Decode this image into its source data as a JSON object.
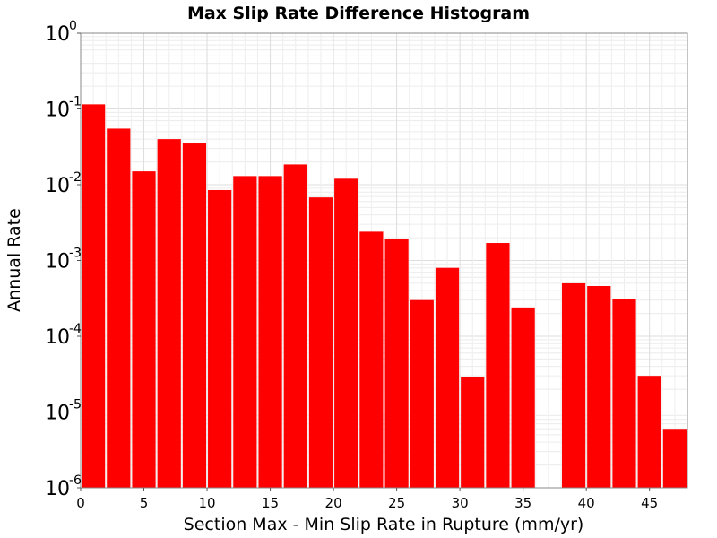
{
  "chart_data": {
    "type": "bar",
    "title": "Max Slip Rate Difference Histogram",
    "xlabel": "Section Max - Min Slip Rate in Rupture (mm/yr)",
    "ylabel": "Annual Rate",
    "xlim": [
      0,
      48
    ],
    "ylim": [
      1e-06,
      1
    ],
    "yscale": "log",
    "bin_width": 2,
    "x_ticks": [
      0,
      5,
      10,
      15,
      20,
      25,
      30,
      35,
      40,
      45
    ],
    "y_ticks": [
      {
        "value": 1,
        "base": "10",
        "exp": "0"
      },
      {
        "value": 0.1,
        "base": "10",
        "exp": "-1"
      },
      {
        "value": 0.01,
        "base": "10",
        "exp": "-2"
      },
      {
        "value": 0.001,
        "base": "10",
        "exp": "-3"
      },
      {
        "value": 0.0001,
        "base": "10",
        "exp": "-4"
      },
      {
        "value": 1e-05,
        "base": "10",
        "exp": "-5"
      },
      {
        "value": 1e-06,
        "base": "10",
        "exp": "-6"
      }
    ],
    "bar_color": "#ff0000",
    "grid": true,
    "bars": [
      {
        "x_start": 0,
        "value": 0.115
      },
      {
        "x_start": 2,
        "value": 0.055
      },
      {
        "x_start": 4,
        "value": 0.015
      },
      {
        "x_start": 6,
        "value": 0.04
      },
      {
        "x_start": 8,
        "value": 0.035
      },
      {
        "x_start": 10,
        "value": 0.0085
      },
      {
        "x_start": 12,
        "value": 0.013
      },
      {
        "x_start": 14,
        "value": 0.013
      },
      {
        "x_start": 16,
        "value": 0.0185
      },
      {
        "x_start": 18,
        "value": 0.0068
      },
      {
        "x_start": 20,
        "value": 0.012
      },
      {
        "x_start": 22,
        "value": 0.0024
      },
      {
        "x_start": 24,
        "value": 0.0019
      },
      {
        "x_start": 26,
        "value": 0.0003
      },
      {
        "x_start": 28,
        "value": 0.0008
      },
      {
        "x_start": 30,
        "value": 2.9e-05
      },
      {
        "x_start": 32,
        "value": 0.0017
      },
      {
        "x_start": 34,
        "value": 0.00024
      },
      {
        "x_start": 38,
        "value": 0.0005
      },
      {
        "x_start": 40,
        "value": 0.00046
      },
      {
        "x_start": 42,
        "value": 0.00031
      },
      {
        "x_start": 44,
        "value": 3e-05
      },
      {
        "x_start": 46,
        "value": 6e-06
      }
    ]
  }
}
